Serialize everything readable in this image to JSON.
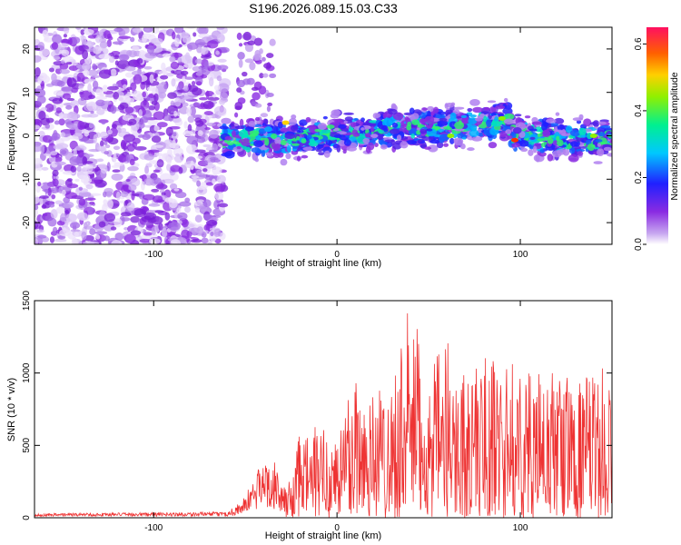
{
  "figure_title": "S196.2026.089.15.03.C33",
  "chart_data": [
    {
      "type": "heatmap",
      "title": "S196.2026.089.15.03.C33",
      "xlabel": "Height of straight line (km)",
      "ylabel": "Frequency (Hz)",
      "xlim": [
        -165,
        150
      ],
      "ylim": [
        -25,
        25
      ],
      "xticks": [
        -100,
        0,
        100
      ],
      "yticks": [
        -20,
        -10,
        0,
        10,
        20
      ],
      "colorbar": {
        "label": "Normalized spectral amplitude",
        "range": [
          0,
          0.65
        ],
        "ticks": [
          "0.0",
          "0.2",
          "0.4",
          "0.6"
        ]
      },
      "description_values": {
        "noise_region_end_km": -65,
        "signal_band_start_km": -62,
        "signal_band_center_hz": 0,
        "signal_band_halfwidth_hz": 6,
        "peak_amplitude_at_km": 97,
        "peak_amplitude": 0.62
      }
    },
    {
      "type": "line",
      "xlabel": "Height of straight line (km)",
      "ylabel": "SNR (10 * v/v)",
      "xlim": [
        -165,
        150
      ],
      "ylim": [
        0,
        1500
      ],
      "xticks": [
        -100,
        0,
        100
      ],
      "yticks": [
        0,
        500,
        1000,
        1500
      ],
      "series": [
        {
          "name": "SNR",
          "color": "#ee3333",
          "envelope_x": [
            -165,
            -60,
            -50,
            -45,
            -40,
            -35,
            -30,
            -25,
            -20,
            -10,
            0,
            10,
            20,
            30,
            40,
            50,
            60,
            70,
            80,
            90,
            100,
            110,
            120,
            130,
            140,
            150
          ],
          "envelope_max": [
            30,
            40,
            150,
            300,
            400,
            430,
            200,
            300,
            600,
            650,
            600,
            1100,
            900,
            1000,
            1500,
            1000,
            1250,
            1000,
            1150,
            1080,
            1070,
            1000,
            1050,
            950,
            1000,
            1080
          ]
        }
      ]
    }
  ]
}
